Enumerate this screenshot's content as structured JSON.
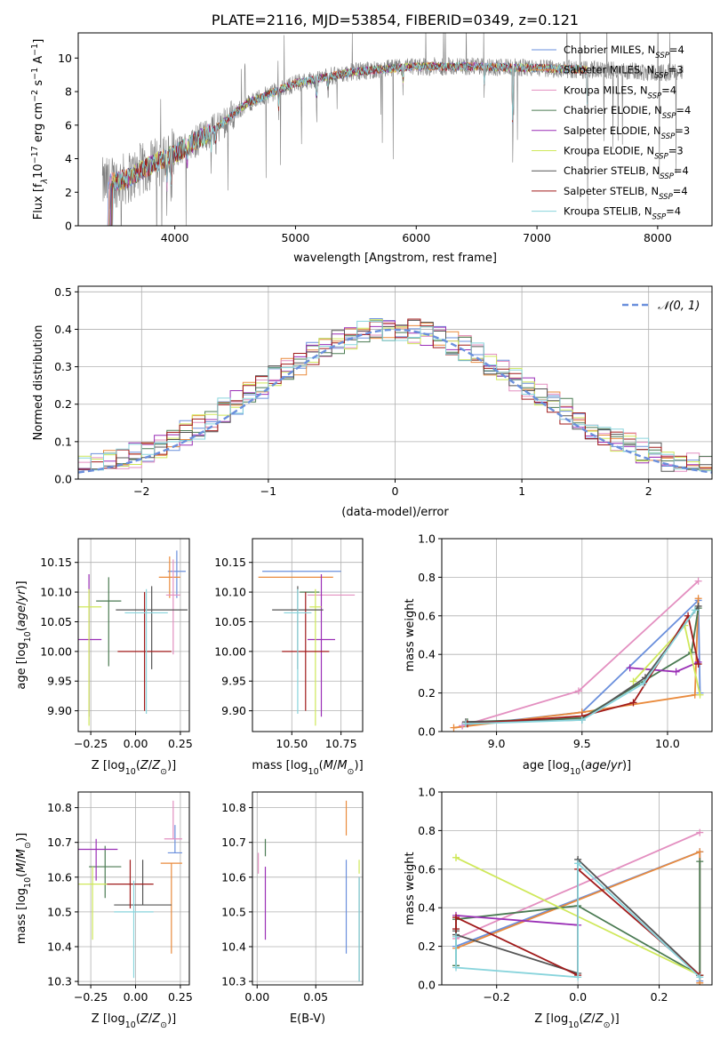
{
  "colors": [
    "#6a8fdc",
    "#e98a3c",
    "#e38fc0",
    "#4a7a52",
    "#9a2fb6",
    "#cfe85a",
    "#555555",
    "#a01a1a",
    "#88d4dc"
  ],
  "chart_data": [
    {
      "id": "spectrum",
      "type": "line",
      "title": "PLATE=2116, MJD=53854, FIBERID=0349, z=0.121",
      "xlabel": "wavelength [Angstrom, rest frame]",
      "ylabel_parts": {
        "a": "Flux [f",
        "b": "λ",
        "c": "10",
        "d": "−17",
        "e": " erg cm",
        "f": "−2",
        "g": " s",
        "h": "−1",
        "i": " A",
        "j": "−1",
        "k": "]"
      },
      "xlim": [
        3200,
        8450
      ],
      "ylim": [
        0,
        11.5
      ],
      "xticks": [
        "4000",
        "5000",
        "6000",
        "7000",
        "8000"
      ],
      "yticks": [
        "0",
        "2",
        "4",
        "6",
        "8",
        "10"
      ],
      "data_color": "#808080",
      "continuum_knots": {
        "x": [
          3420,
          3600,
          3800,
          4000,
          4300,
          4600,
          5000,
          5500,
          6000,
          6500,
          7000,
          7420,
          8200
        ],
        "y": [
          2.5,
          2.8,
          3.6,
          4.3,
          5.6,
          7.3,
          8.5,
          9.2,
          9.5,
          9.5,
          9.4,
          9.3,
          9.1
        ]
      },
      "data_range": [
        3400,
        8210
      ],
      "model_range": [
        3420,
        7420
      ],
      "legend": [
        {
          "m": "Chabrier MILES, N",
          "s": "SSP",
          "v": "=4"
        },
        {
          "m": "Salpeter MILES, N",
          "s": "SSP",
          "v": "=3"
        },
        {
          "m": "Kroupa MILES, N",
          "s": "SSP",
          "v": "=4"
        },
        {
          "m": "Chabrier ELODIE, N",
          "s": "SSP",
          "v": "=4"
        },
        {
          "m": "Salpeter ELODIE, N",
          "s": "SSP",
          "v": "=3"
        },
        {
          "m": "Kroupa ELODIE, N",
          "s": "SSP",
          "v": "=3"
        },
        {
          "m": "Chabrier STELIB, N",
          "s": "SSP",
          "v": "=4"
        },
        {
          "m": "Salpeter STELIB, N",
          "s": "SSP",
          "v": "=4"
        },
        {
          "m": "Kroupa STELIB, N",
          "s": "SSP",
          "v": "=4"
        }
      ]
    },
    {
      "id": "residuals",
      "type": "step",
      "xlabel": "(data-model)/error",
      "ylabel": "Normed distribution",
      "xlim": [
        -2.5,
        2.5
      ],
      "ylim": [
        0,
        0.515
      ],
      "xticks": [
        "−2",
        "−1",
        "0",
        "1",
        "2"
      ],
      "yticks": [
        "0.0",
        "0.1",
        "0.2",
        "0.3",
        "0.4",
        "0.5"
      ],
      "bin_width": 0.1,
      "legend": "𝒩(0, 1)",
      "curve_color": "#6a8fdc"
    },
    {
      "id": "age_vs_Z",
      "type": "errorbar",
      "xlabel": "Z [log10(Z/Z⊙)]",
      "ylabel": "age  [log10(age/yr)]",
      "xlim": [
        -0.32,
        0.3
      ],
      "ylim": [
        9.865,
        10.19
      ],
      "xticks": [
        "−0.25",
        "0.00",
        "0.25"
      ],
      "yticks": [
        "9.90",
        "9.95",
        "10.00",
        "10.05",
        "10.10",
        "10.15"
      ],
      "points": [
        {
          "x": 0.23,
          "xerr": 0.05,
          "y": 10.135,
          "yerr": [
            0.045,
            0.035
          ]
        },
        {
          "x": 0.19,
          "xerr": 0.06,
          "y": 10.125,
          "yerr": [
            0.035,
            0.035
          ]
        },
        {
          "x": 0.21,
          "xerr": 0.04,
          "y": 10.095,
          "yerr": [
            0.1,
            0.06
          ]
        },
        {
          "x": -0.15,
          "xerr": 0.07,
          "y": 10.085,
          "yerr": [
            0.11,
            0.04
          ]
        },
        {
          "x": -0.26,
          "xerr": 0.07,
          "y": 10.02,
          "yerr": [
            0.13,
            0.11
          ]
        },
        {
          "x": -0.26,
          "xerr": 0.07,
          "y": 10.075,
          "yerr": [
            0.2,
            0.03
          ]
        },
        {
          "x": 0.09,
          "xerr": 0.2,
          "y": 10.07,
          "yerr": [
            0.1,
            0.04
          ]
        },
        {
          "x": 0.05,
          "xerr": 0.15,
          "y": 10.0,
          "yerr": [
            0.1,
            0.1
          ]
        },
        {
          "x": 0.06,
          "xerr": 0.12,
          "y": 10.065,
          "yerr": [
            0.17,
            0.04
          ]
        }
      ]
    },
    {
      "id": "age_vs_mass",
      "type": "errorbar",
      "xlabel": "mass [log10(M/M⊙)]",
      "ylabel": "",
      "xlim": [
        10.3,
        10.86
      ],
      "ylim": [
        9.865,
        10.19
      ],
      "xticks": [
        "10.50",
        "10.75"
      ],
      "yticks": [
        "9.90",
        "9.95",
        "10.00",
        "10.05",
        "10.10",
        "10.15"
      ],
      "points": [
        {
          "x": 10.55,
          "xerr": 0.2,
          "y": 10.135,
          "yerr": [
            0.0,
            0.0
          ]
        },
        {
          "x": 10.52,
          "xerr": 0.19,
          "y": 10.125,
          "yerr": [
            0.0,
            0.0
          ]
        },
        {
          "x": 10.7,
          "xerr": 0.12,
          "y": 10.095,
          "yerr": [
            0.0,
            0.0
          ]
        },
        {
          "x": 10.59,
          "xerr": 0.05,
          "y": 10.1,
          "yerr": [
            0.0,
            0.0
          ]
        },
        {
          "x": 10.65,
          "xerr": 0.07,
          "y": 10.02,
          "yerr": [
            0.13,
            0.11
          ]
        },
        {
          "x": 10.62,
          "xerr": 0.03,
          "y": 10.075,
          "yerr": [
            0.2,
            0.03
          ]
        },
        {
          "x": 10.53,
          "xerr": 0.13,
          "y": 10.07,
          "yerr": [
            0.1,
            0.04
          ]
        },
        {
          "x": 10.57,
          "xerr": 0.12,
          "y": 10.0,
          "yerr": [
            0.1,
            0.1
          ]
        },
        {
          "x": 10.53,
          "xerr": 0.07,
          "y": 10.065,
          "yerr": [
            0.17,
            0.04
          ]
        }
      ]
    },
    {
      "id": "weight_vs_age",
      "type": "line",
      "xlabel": "age  [log10(age/yr)]",
      "ylabel": "mass weight",
      "xlim": [
        8.68,
        10.26
      ],
      "ylim": [
        0,
        1.0
      ],
      "xticks": [
        "9.0",
        "9.5",
        "10.0"
      ],
      "yticks": [
        "0.0",
        "0.2",
        "0.4",
        "0.6",
        "0.8",
        "1.0"
      ],
      "series": [
        {
          "x": [
            8.8,
            9.5,
            10.18,
            10.19
          ],
          "y": [
            0.03,
            0.1,
            0.68,
            0.2
          ]
        },
        {
          "x": [
            8.75,
            9.5,
            10.16,
            10.18
          ],
          "y": [
            0.02,
            0.1,
            0.19,
            0.69
          ]
        },
        {
          "x": [
            8.8,
            9.48,
            10.18
          ],
          "y": [
            0.03,
            0.21,
            0.78
          ]
        },
        {
          "x": [
            8.83,
            9.5,
            10.14,
            10.18
          ],
          "y": [
            0.05,
            0.07,
            0.41,
            0.64
          ]
        },
        {
          "x": [
            9.78,
            10.05,
            10.18
          ],
          "y": [
            0.33,
            0.31,
            0.36
          ]
        },
        {
          "x": [
            9.8,
            10.1,
            10.19
          ],
          "y": [
            0.26,
            0.55,
            0.19
          ]
        },
        {
          "x": [
            8.82,
            9.5,
            9.87,
            10.18
          ],
          "y": [
            0.05,
            0.06,
            0.28,
            0.65
          ]
        },
        {
          "x": [
            8.83,
            9.5,
            9.8,
            10.12,
            10.18
          ],
          "y": [
            0.04,
            0.08,
            0.15,
            0.6,
            0.35
          ]
        },
        {
          "x": [
            8.82,
            9.5,
            9.86,
            10.16
          ],
          "y": [
            0.04,
            0.06,
            0.25,
            0.63
          ]
        }
      ]
    },
    {
      "id": "mass_vs_Z",
      "type": "errorbar",
      "xlabel": "Z [log10(Z/Z⊙)]",
      "ylabel": "mass [log10(M/M⊙)]",
      "xlim": [
        -0.32,
        0.3
      ],
      "ylim": [
        10.29,
        10.845
      ],
      "xticks": [
        "−0.25",
        "0.00",
        "0.25"
      ],
      "yticks": [
        "10.3",
        "10.4",
        "10.5",
        "10.6",
        "10.7",
        "10.8"
      ],
      "points": [
        {
          "x": 0.22,
          "xerr": 0.04,
          "y": 10.67,
          "yerr": [
            0.0,
            0.08
          ]
        },
        {
          "x": 0.2,
          "xerr": 0.06,
          "y": 10.64,
          "yerr": [
            0.26,
            0.0
          ]
        },
        {
          "x": 0.21,
          "xerr": 0.05,
          "y": 10.71,
          "yerr": [
            0.0,
            0.11
          ]
        },
        {
          "x": -0.17,
          "xerr": 0.09,
          "y": 10.63,
          "yerr": [
            0.09,
            0.06
          ]
        },
        {
          "x": -0.22,
          "xerr": 0.12,
          "y": 10.68,
          "yerr": [
            0.09,
            0.03
          ]
        },
        {
          "x": -0.24,
          "xerr": 0.08,
          "y": 10.58,
          "yerr": [
            0.16,
            0.05
          ]
        },
        {
          "x": 0.04,
          "xerr": 0.16,
          "y": 10.52,
          "yerr": [
            0.0,
            0.13
          ]
        },
        {
          "x": -0.03,
          "xerr": 0.13,
          "y": 10.58,
          "yerr": [
            0.07,
            0.07
          ]
        },
        {
          "x": -0.01,
          "xerr": 0.11,
          "y": 10.5,
          "yerr": [
            0.19,
            0.09
          ]
        }
      ]
    },
    {
      "id": "mass_vs_EBV",
      "type": "errorbar",
      "xlabel": "E(B-V)",
      "ylabel": "",
      "xlim": [
        -0.004,
        0.09
      ],
      "ylim": [
        10.29,
        10.845
      ],
      "xticks": [
        "0.00",
        "0.05"
      ],
      "yticks": [
        "10.3",
        "10.4",
        "10.5",
        "10.6",
        "10.7",
        "10.8"
      ],
      "points": [
        {
          "x": 0.076,
          "xerr": 0,
          "y": 10.65,
          "yerr": [
            0.27,
            0.0
          ]
        },
        {
          "x": 0.076,
          "xerr": 0,
          "y": 10.72,
          "yerr": [
            0.0,
            0.1
          ]
        },
        {
          "x": 0.001,
          "xerr": 0,
          "y": 10.61,
          "yerr": [
            0.0,
            0.06
          ]
        },
        {
          "x": 0.007,
          "xerr": 0,
          "y": 10.66,
          "yerr": [
            0.0,
            0.05
          ]
        },
        {
          "x": 0.007,
          "xerr": 0,
          "y": 10.52,
          "yerr": [
            0.1,
            0.11
          ]
        },
        {
          "x": 0.087,
          "xerr": 0,
          "y": 10.61,
          "yerr": [
            0.0,
            0.04
          ]
        },
        {
          "x": 0.087,
          "xerr": 0,
          "y": 10.45,
          "yerr": [
            0.15,
            0.15
          ]
        },
        {
          "x": 0.001,
          "xerr": 0,
          "y": 10.5,
          "yerr": [
            0.0,
            0.0
          ]
        },
        {
          "x": 0.087,
          "xerr": 0,
          "y": 10.45,
          "yerr": [
            0.15,
            0.15
          ]
        }
      ]
    },
    {
      "id": "weight_vs_Z",
      "type": "line",
      "xlabel": "Z [log10(Z/Z⊙)]",
      "ylabel": "mass weight",
      "xlim": [
        -0.335,
        0.33
      ],
      "ylim": [
        0,
        1.0
      ],
      "xticks": [
        "−0.2",
        "0.0",
        "0.2"
      ],
      "yticks": [
        "0.0",
        "0.2",
        "0.4",
        "0.6",
        "0.8",
        "1.0"
      ],
      "series": [
        {
          "x": [
            -0.3,
            0.3,
            0.3
          ],
          "y": [
            0.2,
            0.69,
            0.02
          ]
        },
        {
          "x": [
            -0.3,
            0.3,
            0.3
          ],
          "y": [
            0.19,
            0.69,
            0.01
          ]
        },
        {
          "x": [
            -0.3,
            0.3
          ],
          "y": [
            0.24,
            0.79
          ]
        },
        {
          "x": [
            -0.3,
            -0.3,
            0.0,
            0.3,
            0.3
          ],
          "y": [
            0.1,
            0.34,
            0.41,
            0.05,
            0.64
          ]
        },
        {
          "x": [
            -0.3,
            0.0
          ],
          "y": [
            0.36,
            0.31
          ]
        },
        {
          "x": [
            -0.3,
            -0.3,
            0.3
          ],
          "y": [
            0.66,
            0.66,
            0.05
          ]
        },
        {
          "x": [
            -0.3,
            -0.3,
            0.0,
            0.0,
            0.3
          ],
          "y": [
            0.28,
            0.26,
            0.06,
            0.65,
            0.05
          ]
        },
        {
          "x": [
            -0.3,
            -0.3,
            0.0,
            0.0,
            0.3
          ],
          "y": [
            0.29,
            0.35,
            0.05,
            0.6,
            0.05
          ]
        },
        {
          "x": [
            -0.3,
            -0.3,
            0.0,
            0.0,
            0.3
          ],
          "y": [
            0.25,
            0.09,
            0.04,
            0.63,
            0.04
          ]
        }
      ]
    }
  ]
}
